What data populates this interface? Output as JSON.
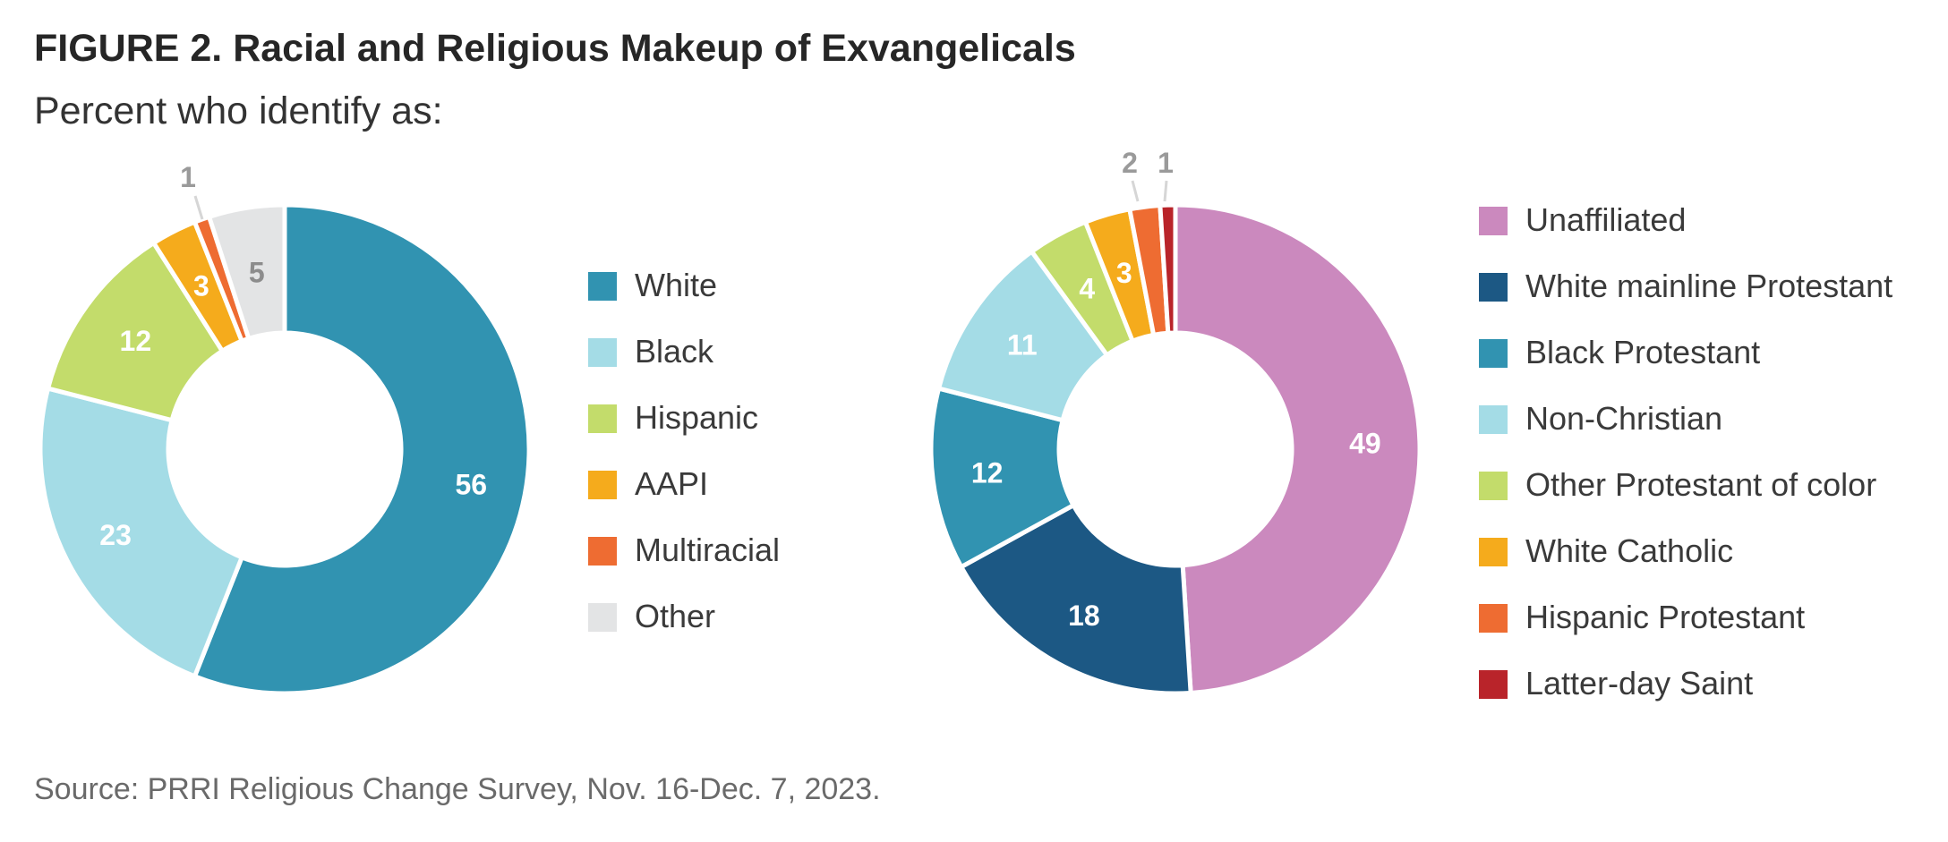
{
  "title": "FIGURE 2. Racial and Religious Makeup of Exvangelicals",
  "subtitle": "Percent who identify as:",
  "source": "Source: PRRI Religious Change Survey, Nov. 16-Dec. 7, 2023.",
  "chart_data": [
    {
      "type": "pie",
      "donut": true,
      "slices": [
        {
          "label": "White",
          "value": 56,
          "color": "#3193b1",
          "label_color": "#ffffff"
        },
        {
          "label": "Black",
          "value": 23,
          "color": "#a4dce6",
          "label_color": "#ffffff"
        },
        {
          "label": "Hispanic",
          "value": 12,
          "color": "#c3dc6b",
          "label_color": "#ffffff"
        },
        {
          "label": "AAPI",
          "value": 3,
          "color": "#f5ab1c",
          "label_color": "#ffffff"
        },
        {
          "label": "Multiracial",
          "value": 1,
          "color": "#ee6c32",
          "label_color": "#9a9a9a"
        },
        {
          "label": "Other",
          "value": 5,
          "color": "#e3e4e5",
          "label_color": "#8c8c8c"
        }
      ],
      "legend": [
        "White",
        "Black",
        "Hispanic",
        "AAPI",
        "Multiracial",
        "Other"
      ],
      "legend_placement": "right"
    },
    {
      "type": "pie",
      "donut": true,
      "slices": [
        {
          "label": "Unaffiliated",
          "value": 49,
          "color": "#cb89be",
          "label_color": "#ffffff"
        },
        {
          "label": "White mainline Protestant",
          "value": 18,
          "color": "#1c5884",
          "label_color": "#ffffff"
        },
        {
          "label": "Black Protestant",
          "value": 12,
          "color": "#3193b1",
          "label_color": "#ffffff"
        },
        {
          "label": "Non-Christian",
          "value": 11,
          "color": "#a4dce6",
          "label_color": "#ffffff"
        },
        {
          "label": "Other Protestant of color",
          "value": 4,
          "color": "#c3dc6b",
          "label_color": "#ffffff"
        },
        {
          "label": "White Catholic",
          "value": 3,
          "color": "#f5ab1c",
          "label_color": "#ffffff"
        },
        {
          "label": "Hispanic Protestant",
          "value": 2,
          "color": "#ee6c32",
          "label_color": "#9a9a9a"
        },
        {
          "label": "Latter-day Saint",
          "value": 1,
          "color": "#b9242a",
          "label_color": "#9a9a9a"
        }
      ],
      "legend": [
        "Unaffiliated",
        "White mainline Protestant",
        "Black Protestant",
        "Non-Christian",
        "Other Protestant of color",
        "White Catholic",
        "Hispanic Protestant",
        "Latter-day Saint"
      ],
      "legend_placement": "right"
    }
  ]
}
